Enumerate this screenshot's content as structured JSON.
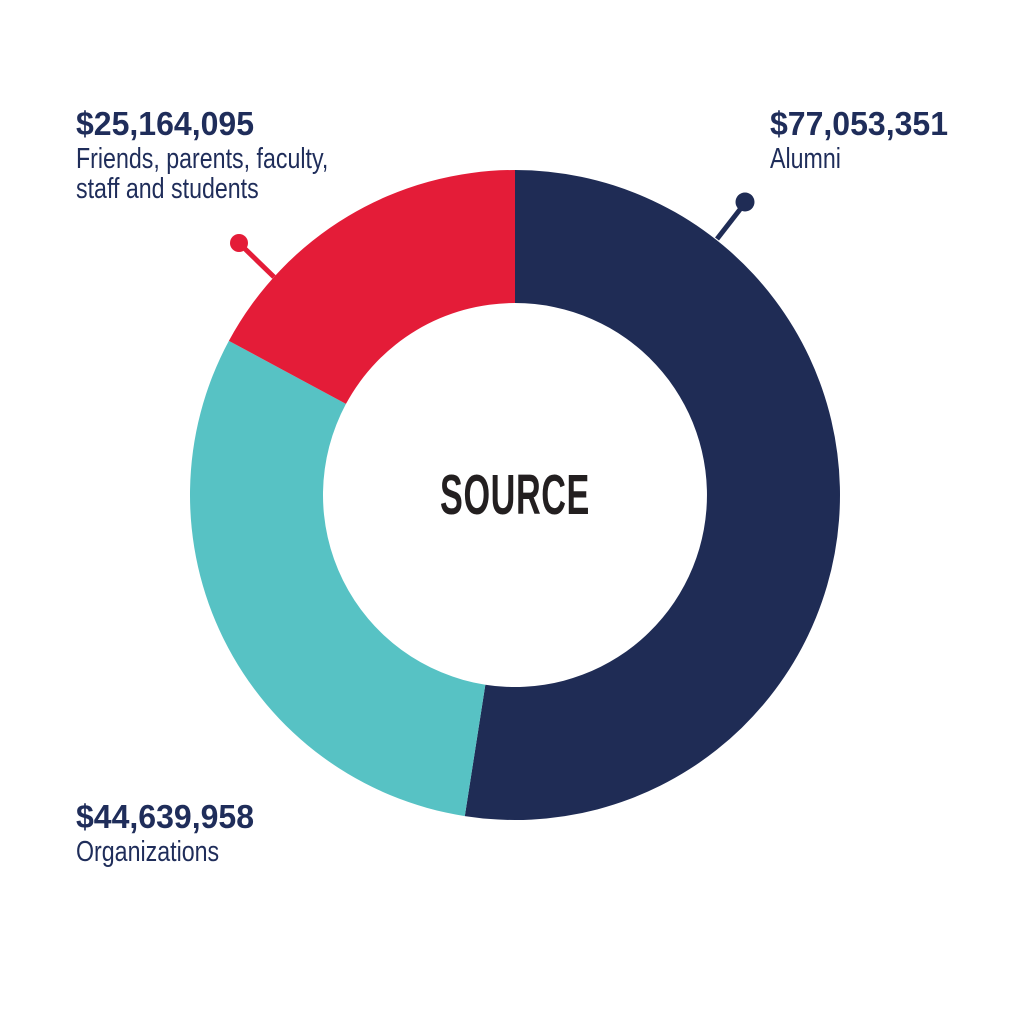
{
  "chart_data": {
    "type": "pie",
    "subtype": "donut",
    "title": "SOURCE",
    "center_label": "SOURCE",
    "start_angle_deg": 0,
    "direction": "clockwise",
    "inner_radius_ratio": 0.59,
    "legend": "none",
    "labels_style": "callout",
    "segments": [
      {
        "label": "Alumni",
        "value": 77053351,
        "value_display": "$77,053,351",
        "color": "#1f2c55",
        "label_position": "top-right",
        "label_lines": [
          "Alumni"
        ]
      },
      {
        "label": "Organizations",
        "value": 44639958,
        "value_display": "$44,639,958",
        "color": "#57c2c4",
        "label_position": "bottom-left",
        "label_lines": [
          "Organizations"
        ]
      },
      {
        "label": "Friends, parents, faculty, staff and students",
        "value": 25164095,
        "value_display": "$25,164,095",
        "color": "#e41c38",
        "label_position": "top-left",
        "label_lines": [
          "Friends, parents, faculty,",
          "staff and students"
        ]
      }
    ],
    "colors": {
      "background": "#ffffff",
      "navy": "#1f2c55",
      "teal": "#57c2c4",
      "red": "#e41c38",
      "center_text": "#231f20",
      "label_text": "#1f2d5a"
    }
  }
}
